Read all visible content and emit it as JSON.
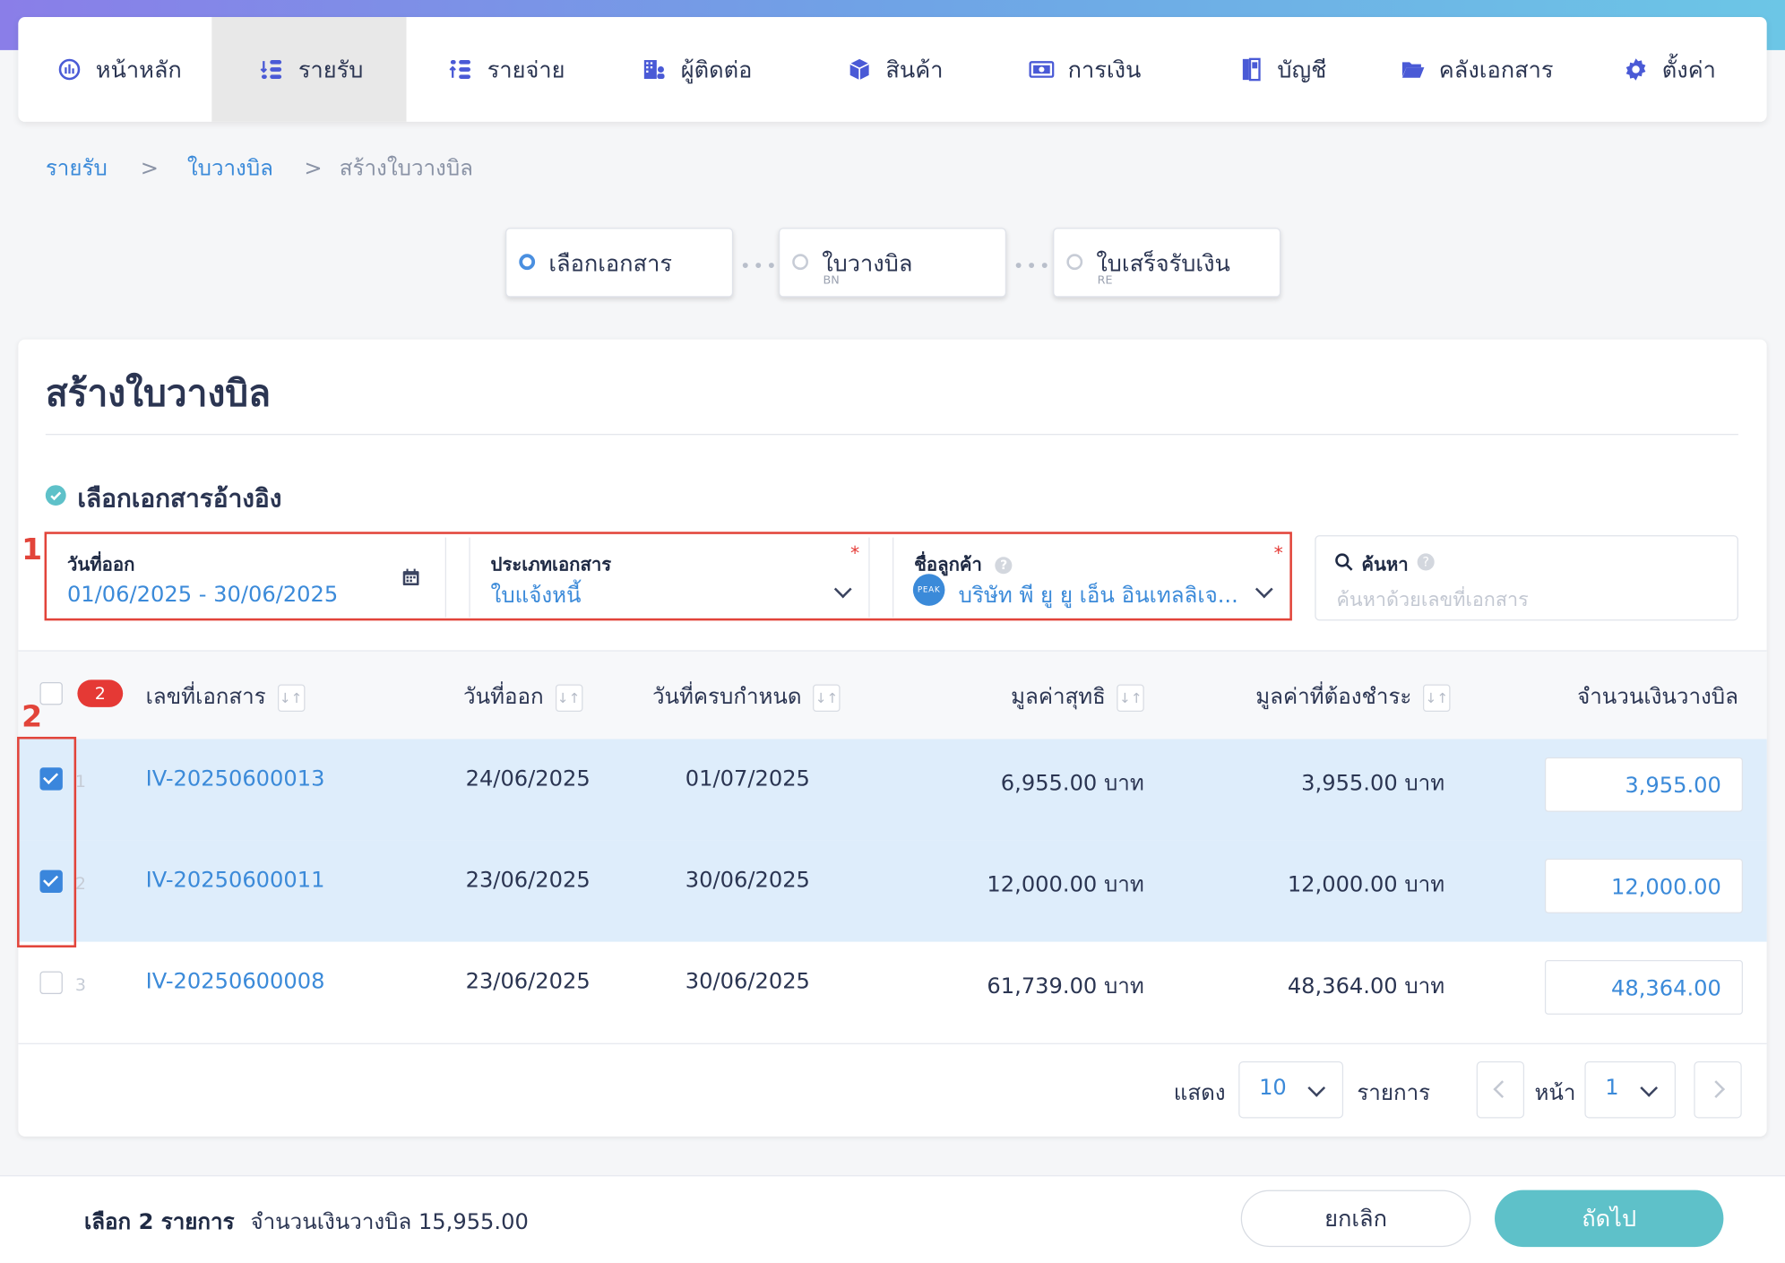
{
  "nav": {
    "items": [
      {
        "label": "หน้าหลัก",
        "icon": "dashboard-icon"
      },
      {
        "label": "รายรับ",
        "icon": "income-icon"
      },
      {
        "label": "รายจ่าย",
        "icon": "expense-icon"
      },
      {
        "label": "ผู้ติดต่อ",
        "icon": "contacts-icon"
      },
      {
        "label": "สินค้า",
        "icon": "product-box-icon"
      },
      {
        "label": "การเงิน",
        "icon": "money-icon"
      },
      {
        "label": "บัญชี",
        "icon": "ledger-book-icon"
      },
      {
        "label": "คลังเอกสาร",
        "icon": "folder-icon"
      },
      {
        "label": "ตั้งค่า",
        "icon": "gear-icon"
      }
    ],
    "active": "รายรับ"
  },
  "breadcrumb": {
    "level1": "รายรับ",
    "level2": "ใบวางบิล",
    "current": "สร้างใบวางบิล",
    "separator": ">"
  },
  "steps": [
    {
      "label": "เลือกเอกสาร",
      "sub": ""
    },
    {
      "label": "ใบวางบิล",
      "sub": "BN"
    },
    {
      "label": "ใบเสร็จรับเงิน",
      "sub": "RE"
    }
  ],
  "page_title": "สร้างใบวางบิล",
  "section_title": "เลือกเอกสารอ้างอิง",
  "filters": {
    "date": {
      "label": "วันที่ออก",
      "value": "01/06/2025 - 30/06/2025"
    },
    "doc_type": {
      "label": "ประเภทเอกสาร",
      "value": "ใบแจ้งหนี้",
      "required": "*"
    },
    "customer": {
      "label": "ชื่อลูกค้า",
      "value": "บริษัท พี ยู ยู เอ็น อินเทลลิเจ...",
      "required": "*",
      "help": "?",
      "avatar_text": "PEAK"
    },
    "search": {
      "label": "ค้นหา",
      "placeholder": "ค้นหาด้วยเลขที่เอกสาร",
      "help": "?"
    }
  },
  "annotations": {
    "box1": "1",
    "box2": "2"
  },
  "table": {
    "selected_count": "2",
    "sort_glyph": "↓↑",
    "headers": {
      "doc_no": "เลขที่เอกสาร",
      "issue_date": "วันที่ออก",
      "due_date": "วันที่ครบกำหนด",
      "net": "มูลค่าสุทธิ",
      "outstanding": "มูลค่าที่ต้องชำระ",
      "bill_amount": "จำนวนเงินวางบิล"
    },
    "rows": [
      {
        "index": "1",
        "checked": true,
        "doc_no": "IV-20250600013",
        "issue_date": "24/06/2025",
        "due_date": "01/07/2025",
        "net": "6,955.00 บาท",
        "outstanding": "3,955.00 บาท",
        "bill_amount": "3,955.00"
      },
      {
        "index": "2",
        "checked": true,
        "doc_no": "IV-20250600011",
        "issue_date": "23/06/2025",
        "due_date": "30/06/2025",
        "net": "12,000.00 บาท",
        "outstanding": "12,000.00 บาท",
        "bill_amount": "12,000.00"
      },
      {
        "index": "3",
        "checked": false,
        "doc_no": "IV-20250600008",
        "issue_date": "23/06/2025",
        "due_date": "30/06/2025",
        "net": "61,739.00 บาท",
        "outstanding": "48,364.00 บาท",
        "bill_amount": "48,364.00"
      }
    ]
  },
  "pagination": {
    "show_label": "แสดง",
    "per_page": "10",
    "items_label": "รายการ",
    "page_label": "หน้า",
    "page": "1"
  },
  "footer": {
    "selected_text": "เลือก 2 รายการ",
    "total_text": "จำนวนเงินวางบิล 15,955.00",
    "cancel_label": "ยกเลิก",
    "next_label": "ถัดไป"
  },
  "colors": {
    "accent": "#3b8ad9",
    "next_button": "#5ec1c9",
    "selected_row": "#deedfb",
    "annotation_red": "#e2443a"
  }
}
